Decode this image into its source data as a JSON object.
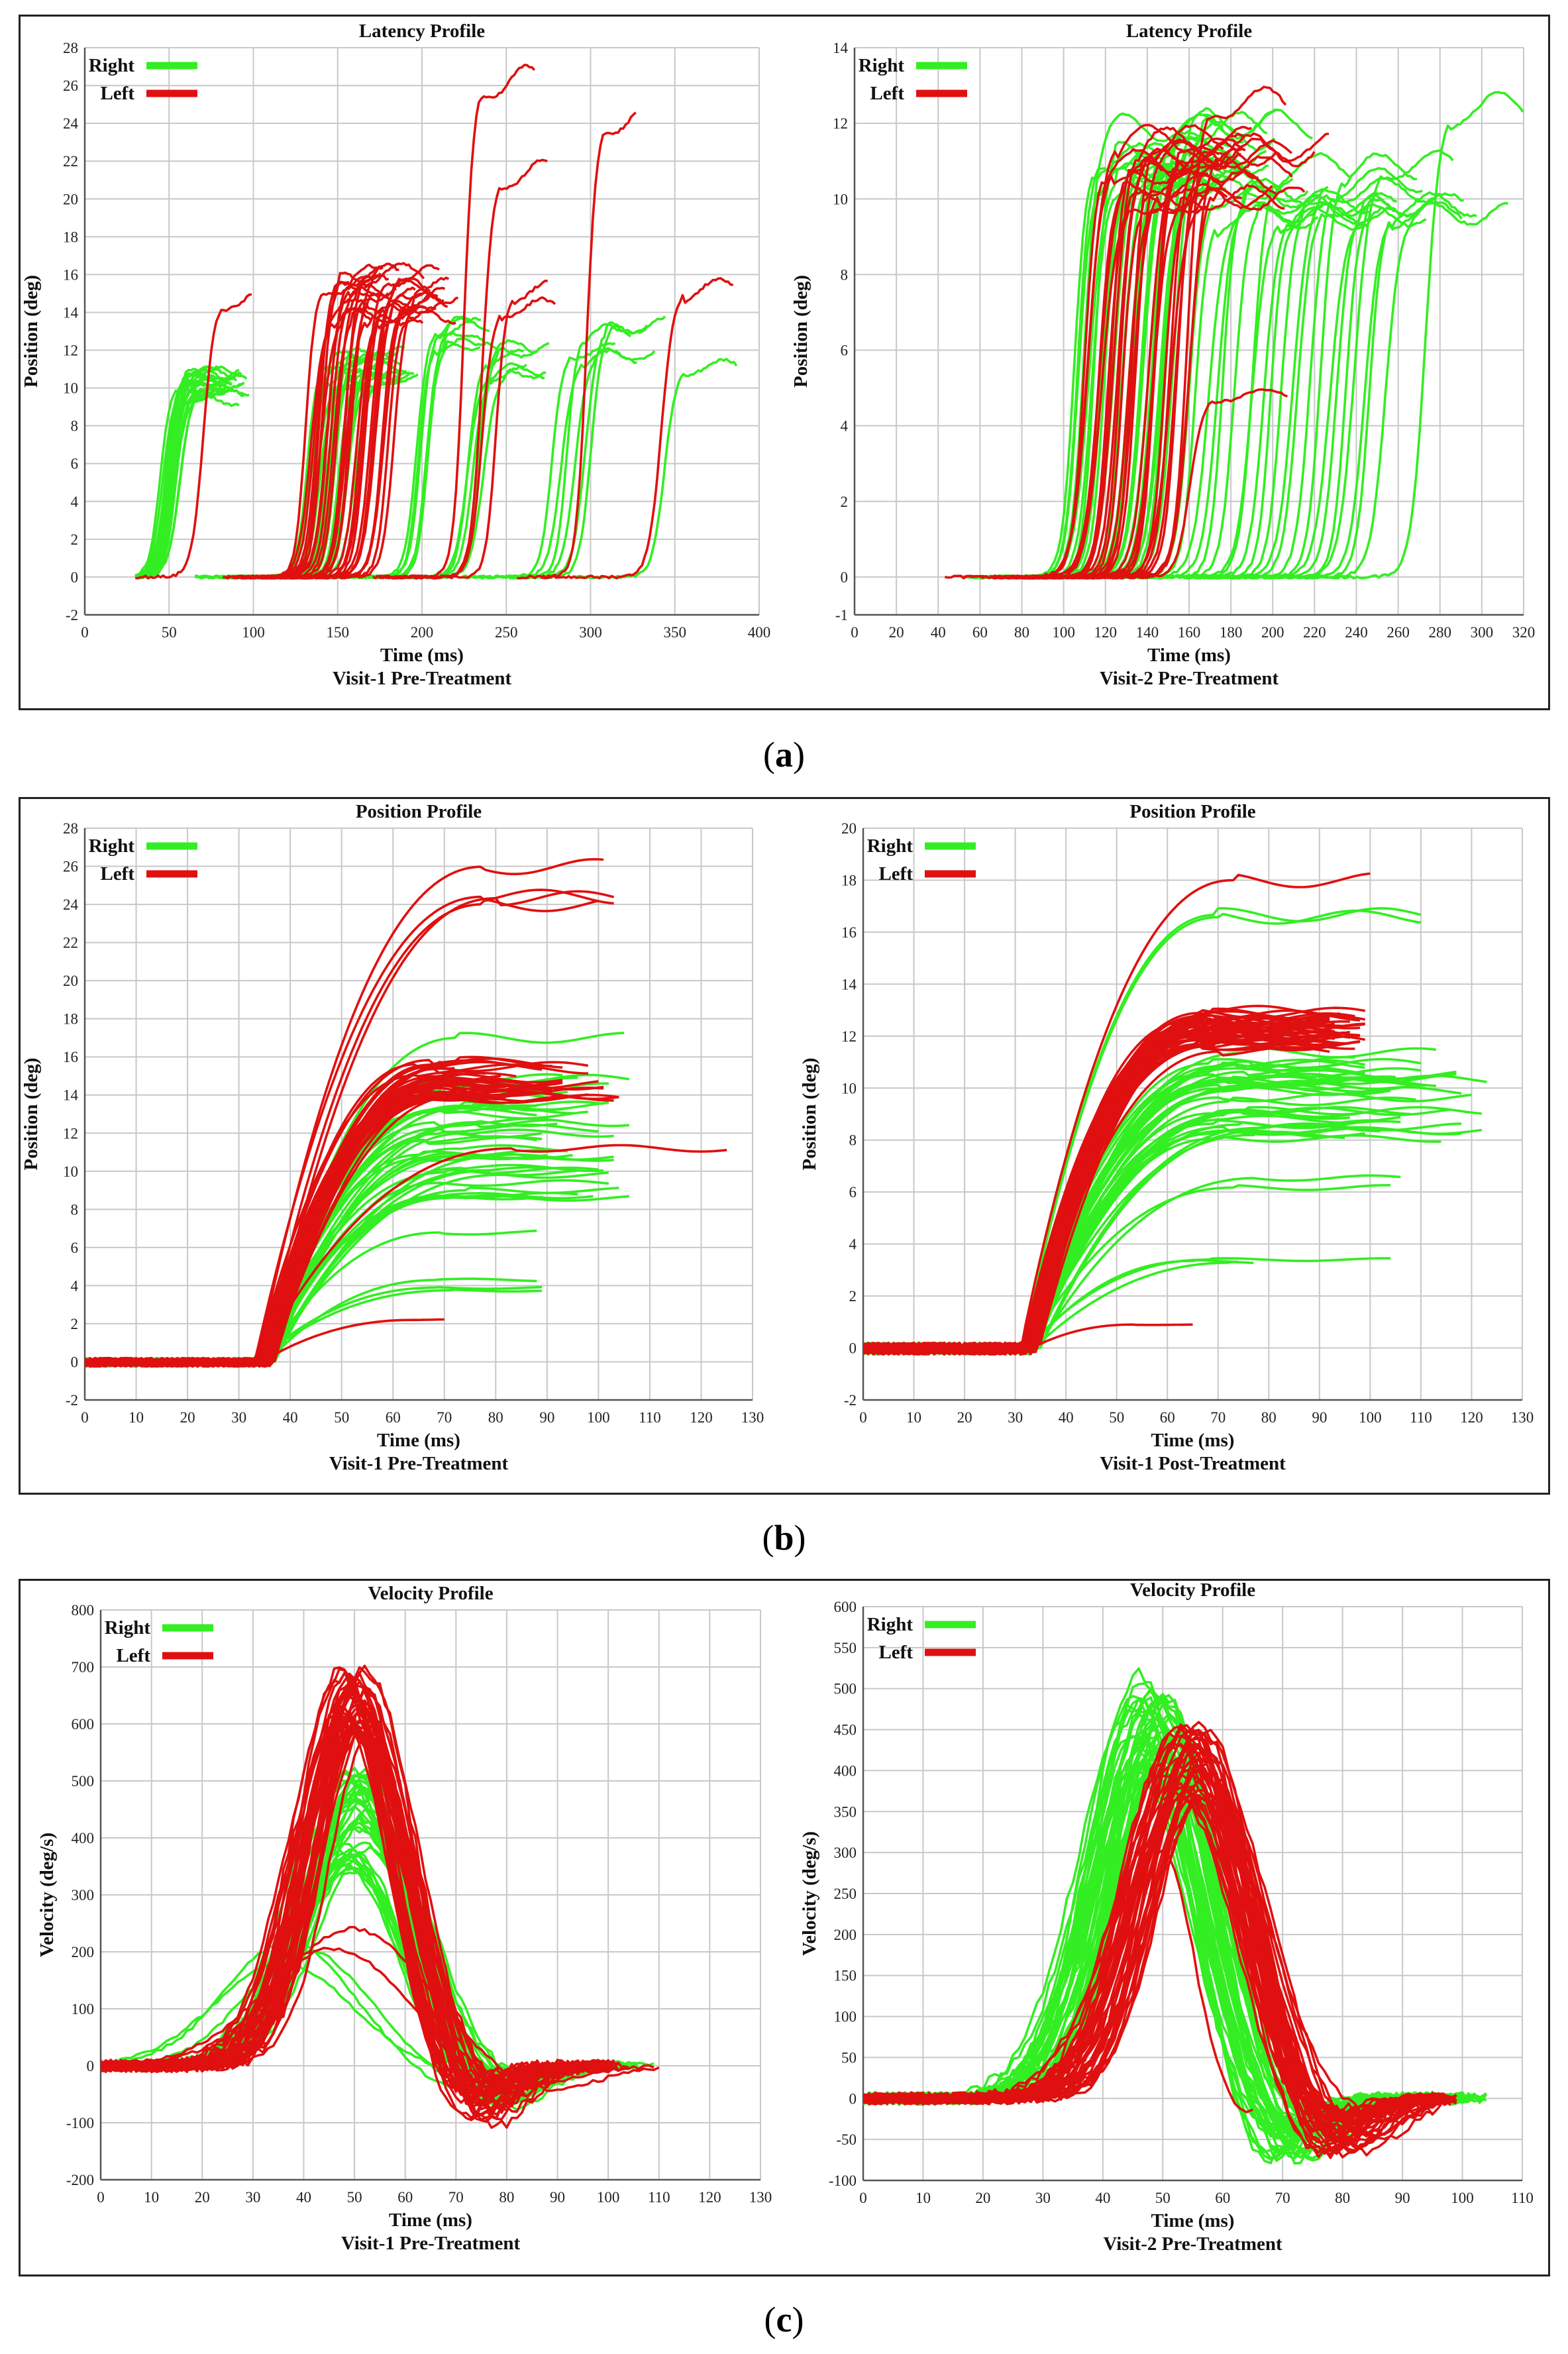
{
  "captions": {
    "a": "a",
    "b": "b",
    "c": "c"
  },
  "colors": {
    "right": "#33ee22",
    "left": "#e01010",
    "grid": "#c8c8c8",
    "axis": "#555555"
  },
  "chart_data": [
    {
      "id": "a1",
      "type": "line",
      "panel": "a",
      "title": "Latency Profile",
      "subtitle": "Visit-1 Pre-Treatment",
      "xlabel": "Time (ms)",
      "ylabel": "Position (deg)",
      "xlim": [
        0,
        400
      ],
      "ylim": [
        -2,
        28
      ],
      "xticks": [
        0,
        50,
        100,
        150,
        200,
        250,
        300,
        350,
        400
      ],
      "yticks": [
        -2,
        0,
        2,
        4,
        6,
        8,
        10,
        12,
        14,
        16,
        18,
        20,
        22,
        24,
        26,
        28
      ],
      "legend": [
        "Right",
        "Left"
      ],
      "gen": {
        "kind": "latency",
        "t0": 60,
        "t1": 380,
        "durMs": 22,
        "plateau": 32
      },
      "right": [
        {
          "onset": 35,
          "amp": 10,
          "group": 20,
          "spread": 8
        },
        {
          "onset": 120,
          "amp": 11,
          "group": 22,
          "spread": 28
        },
        {
          "onset": 185,
          "amp": 12.5,
          "group": 6,
          "spread": 10
        },
        {
          "onset": 215,
          "amp": 11.5,
          "group": 6,
          "spread": 10
        },
        {
          "onset": 265,
          "amp": 12.5,
          "group": 6,
          "spread": 25
        },
        {
          "onset": 330,
          "amp": 11,
          "group": 1,
          "spread": 0
        }
      ],
      "left": [
        {
          "onset": 60,
          "amp": 15.2,
          "group": 1,
          "spread": 0
        },
        {
          "onset": 120,
          "amp": 15,
          "group": 30,
          "spread": 50
        },
        {
          "onset": 215,
          "amp": 25,
          "group": 1,
          "spread": 0
        },
        {
          "onset": 225,
          "amp": 21.5,
          "group": 1,
          "spread": 0
        },
        {
          "onset": 225,
          "amp": 14.5,
          "group": 2,
          "spread": 8
        },
        {
          "onset": 285,
          "amp": 24,
          "group": 1,
          "spread": 0
        },
        {
          "onset": 328,
          "amp": 14.3,
          "group": 1,
          "spread": 0
        }
      ]
    },
    {
      "id": "a2",
      "type": "line",
      "panel": "a",
      "title": "Latency Profile",
      "subtitle": "Visit-2 Pre-Treatment",
      "xlabel": "Time (ms)",
      "ylabel": "Position (deg)",
      "xlim": [
        0,
        320
      ],
      "ylim": [
        -1,
        14
      ],
      "xticks": [
        0,
        20,
        40,
        60,
        80,
        100,
        120,
        140,
        160,
        180,
        200,
        220,
        240,
        260,
        280,
        300,
        320
      ],
      "yticks": [
        -1,
        0,
        2,
        4,
        6,
        8,
        10,
        12,
        14
      ],
      "legend": [
        "Right",
        "Left"
      ],
      "gen": {
        "kind": "latency",
        "t0": 60,
        "t1": 320,
        "durMs": 22,
        "plateau": 48
      },
      "right": [
        {
          "onset": 95,
          "amp": 11.2,
          "group": 30,
          "spread": 45
        },
        {
          "onset": 150,
          "amp": 10.3,
          "group": 22,
          "spread": 90
        },
        {
          "onset": 260,
          "amp": 12,
          "group": 1,
          "spread": 0
        }
      ],
      "left": [
        {
          "onset": 98,
          "amp": 10.8,
          "group": 28,
          "spread": 50
        },
        {
          "onset": 150,
          "amp": 12.2,
          "group": 1,
          "spread": 0
        },
        {
          "onset": 150,
          "amp": 5,
          "group": 1,
          "spread": 0
        }
      ]
    },
    {
      "id": "b1",
      "type": "line",
      "panel": "b",
      "title": "Position Profile",
      "subtitle": "Visit-1 Pre-Treatment",
      "xlabel": "Time (ms)",
      "ylabel": "Position (deg)",
      "xlim": [
        0,
        130
      ],
      "ylim": [
        -2,
        28
      ],
      "xticks": [
        0,
        10,
        20,
        30,
        40,
        50,
        60,
        70,
        80,
        90,
        100,
        110,
        120,
        130
      ],
      "yticks": [
        -2,
        0,
        2,
        4,
        6,
        8,
        10,
        12,
        14,
        16,
        18,
        20,
        22,
        24,
        26,
        28
      ],
      "legend": [
        "Right",
        "Left"
      ],
      "gen": {
        "kind": "position",
        "t0": 0,
        "onset": 35
      },
      "right": [
        {
          "amp": 12,
          "group": 40,
          "spread": 3.5,
          "dur": [
            30,
            45
          ],
          "end": [
            88,
            108
          ]
        },
        {
          "amp": 17,
          "group": 1,
          "spread": 0,
          "dur": [
            38,
            38
          ],
          "end": [
            105,
            105
          ]
        },
        {
          "amp": 5,
          "group": 4,
          "spread": 2.5,
          "dur": [
            30,
            40
          ],
          "end": [
            88,
            90
          ]
        }
      ],
      "left": [
        {
          "amp": 14.8,
          "group": 40,
          "spread": 1.1,
          "dur": [
            30,
            38
          ],
          "end": [
            70,
            105
          ]
        },
        {
          "amp": 24.5,
          "group": 4,
          "spread": 1.5,
          "dur": [
            40,
            45
          ],
          "end": [
            100,
            105
          ]
        },
        {
          "amp": 2.2,
          "group": 1,
          "spread": 0,
          "dur": [
            30,
            30
          ],
          "end": [
            70,
            70
          ]
        },
        {
          "amp": 11.2,
          "group": 1,
          "spread": 0,
          "dur": [
            50,
            50
          ],
          "end": [
            125,
            125
          ]
        }
      ]
    },
    {
      "id": "b2",
      "type": "line",
      "panel": "b",
      "title": "Position Profile",
      "subtitle": "Visit-1 Post-Treatment",
      "xlabel": "Time (ms)",
      "ylabel": "Position (deg)",
      "xlim": [
        0,
        130
      ],
      "ylim": [
        -2,
        20
      ],
      "xticks": [
        0,
        10,
        20,
        30,
        40,
        50,
        60,
        70,
        80,
        90,
        100,
        110,
        120,
        130
      ],
      "yticks": [
        -2,
        0,
        2,
        4,
        6,
        8,
        10,
        12,
        14,
        16,
        18,
        20
      ],
      "legend": [
        "Right",
        "Left"
      ],
      "gen": {
        "kind": "position",
        "t0": 0,
        "onset": 33
      },
      "right": [
        {
          "amp": 9.8,
          "group": 40,
          "spread": 1.8,
          "dur": [
            35,
            45
          ],
          "end": [
            95,
            125
          ]
        },
        {
          "amp": 16,
          "group": 2,
          "spread": 0.7,
          "dur": [
            38,
            40
          ],
          "end": [
            110,
            110
          ]
        },
        {
          "amp": 6,
          "group": 2,
          "spread": 0.6,
          "dur": [
            40,
            45
          ],
          "end": [
            100,
            110
          ]
        },
        {
          "amp": 3.2,
          "group": 3,
          "spread": 0.5,
          "dur": [
            30,
            40
          ],
          "end": [
            70,
            105
          ]
        }
      ],
      "left": [
        {
          "amp": 12.2,
          "group": 40,
          "spread": 0.8,
          "dur": [
            30,
            38
          ],
          "end": [
            90,
            100
          ]
        },
        {
          "amp": 18,
          "group": 1,
          "spread": 0,
          "dur": [
            42,
            42
          ],
          "end": [
            100,
            100
          ]
        },
        {
          "amp": 0.9,
          "group": 1,
          "spread": 0,
          "dur": [
            20,
            20
          ],
          "end": [
            65,
            65
          ]
        }
      ]
    },
    {
      "id": "c1",
      "type": "line",
      "panel": "c",
      "title": "Velocity Profile",
      "subtitle": "Visit-1 Pre-Treatment",
      "xlabel": "Time (ms)",
      "ylabel": "Velocity (deg/s)",
      "xlim": [
        0,
        130
      ],
      "ylim": [
        -200,
        800
      ],
      "xticks": [
        0,
        10,
        20,
        30,
        40,
        50,
        60,
        70,
        80,
        90,
        100,
        110,
        120,
        130
      ],
      "yticks": [
        -200,
        -100,
        0,
        100,
        200,
        300,
        400,
        500,
        600,
        700,
        800
      ],
      "legend": [
        "Right",
        "Left"
      ],
      "gen": {
        "kind": "velocity"
      },
      "right": [
        {
          "peak": 430,
          "center": 50,
          "width": 10,
          "group": 40,
          "spreadPeak": 90,
          "spreadCenter": 3,
          "end": [
            95,
            110
          ]
        },
        {
          "peak": 180,
          "center": 40,
          "width": 14,
          "group": 3,
          "spreadPeak": 40,
          "spreadCenter": 5,
          "end": [
            95,
            105
          ]
        }
      ],
      "left": [
        {
          "peak": 640,
          "center": 50,
          "width": 9,
          "group": 40,
          "spreadPeak": 60,
          "spreadCenter": 3,
          "end": [
            90,
            105
          ]
        },
        {
          "peak": 220,
          "center": 48,
          "width": 14,
          "group": 2,
          "spreadPeak": 40,
          "spreadCenter": 4,
          "end": [
            105,
            125
          ]
        }
      ]
    },
    {
      "id": "c2",
      "type": "line",
      "panel": "c",
      "title": "Velocity Profile",
      "subtitle": "Visit-2 Pre-Treatment",
      "xlabel": "Time (ms)",
      "ylabel": "Velocity (deg/s)",
      "xlim": [
        0,
        110
      ],
      "ylim": [
        -100,
        600
      ],
      "xticks": [
        0,
        10,
        20,
        30,
        40,
        50,
        60,
        70,
        80,
        90,
        100,
        110
      ],
      "yticks": [
        -100,
        -50,
        0,
        50,
        100,
        150,
        200,
        250,
        300,
        350,
        400,
        450,
        500,
        550,
        600
      ],
      "legend": [
        "Right",
        "Left"
      ],
      "gen": {
        "kind": "velocity"
      },
      "right": [
        {
          "peak": 460,
          "center": 48,
          "width": 8.5,
          "group": 40,
          "spreadPeak": 60,
          "spreadCenter": 3,
          "end": [
            95,
            105
          ]
        }
      ],
      "left": [
        {
          "peak": 410,
          "center": 55,
          "width": 9,
          "group": 40,
          "spreadPeak": 50,
          "spreadCenter": 3,
          "end": [
            95,
            100
          ]
        },
        {
          "peak": 300,
          "center": 50,
          "width": 5,
          "group": 1,
          "spreadPeak": 0,
          "spreadCenter": 0,
          "end": [
            65,
            65
          ]
        }
      ]
    }
  ]
}
